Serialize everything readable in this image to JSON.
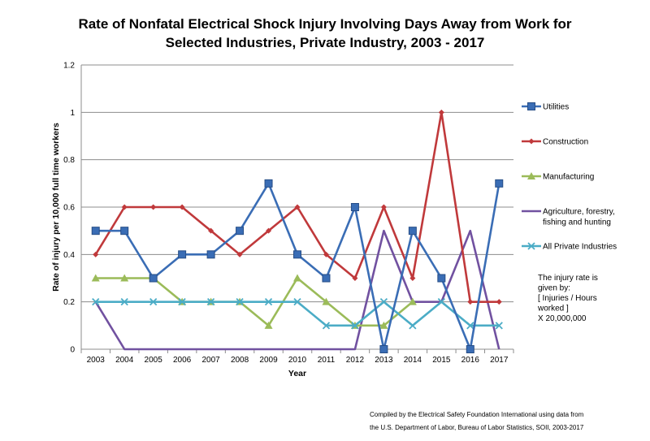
{
  "chart_data": {
    "type": "line",
    "title_lines": [
      "Rate of Nonfatal Electrical Shock Injury Involving Days Away from Work for",
      "Selected Industries, Private Industry, 2003 - 2017"
    ],
    "xlabel": "Year",
    "ylabel": "Rate of injury per 10,000 full time workers",
    "categories": [
      "2003",
      "2004",
      "2005",
      "2006",
      "2007",
      "2008",
      "2009",
      "2010",
      "2011",
      "2012",
      "2013",
      "2014",
      "2015",
      "2016",
      "2017"
    ],
    "ylim": [
      0,
      1.2
    ],
    "yticks": [
      "0",
      "0.2",
      "0.4",
      "0.6",
      "0.8",
      "1",
      "1.2"
    ],
    "grid": true,
    "legend_position": "right",
    "series": [
      {
        "name": "Utilities",
        "color": "#3a6db5",
        "marker": "square",
        "values": [
          0.5,
          0.5,
          0.3,
          0.4,
          0.4,
          0.5,
          0.7,
          0.4,
          0.3,
          0.6,
          0,
          0.5,
          0.3,
          0,
          0.7
        ]
      },
      {
        "name": "Construction",
        "color": "#c0393b",
        "marker": "diamond",
        "values": [
          0.4,
          0.6,
          0.6,
          0.6,
          0.5,
          0.4,
          0.5,
          0.6,
          0.4,
          0.3,
          0.6,
          0.3,
          1,
          0.2,
          0.2
        ]
      },
      {
        "name": "Manufacturing",
        "color": "#9bbb59",
        "marker": "triangle",
        "values": [
          0.3,
          0.3,
          0.3,
          0.2,
          0.2,
          0.2,
          0.1,
          0.3,
          0.2,
          0.1,
          0.1,
          0.2,
          null,
          null,
          null
        ]
      },
      {
        "name_lines": [
          "Agriculture, forestry,",
          "fishing and hunting"
        ],
        "color": "#7151a0",
        "marker": "none",
        "values": [
          0.2,
          0,
          0,
          0,
          0,
          0,
          0,
          0,
          0,
          0,
          0.5,
          0.2,
          0.2,
          0.5,
          0
        ]
      },
      {
        "name": "All Private Industries",
        "color": "#4bacc6",
        "marker": "x",
        "values": [
          0.2,
          0.2,
          0.2,
          0.2,
          0.2,
          0.2,
          0.2,
          0.2,
          0.1,
          0.1,
          0.2,
          0.1,
          0.2,
          0.1,
          0.1
        ]
      }
    ],
    "note_lines": [
      "The injury rate is",
      "given by:",
      "[ Injuries / Hours",
      "worked ]",
      "X 20,000,000"
    ],
    "credit_lines": [
      "Compiled by the Electrical Safety Foundation International using data from",
      "the U.S. Department of Labor, Bureau of Labor Statistics, SOII, 2003-2017"
    ]
  }
}
